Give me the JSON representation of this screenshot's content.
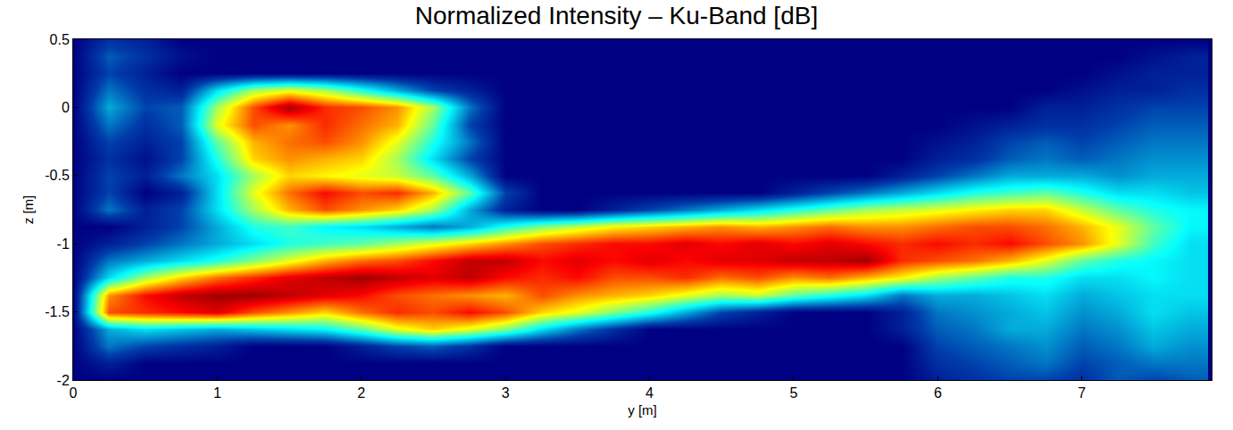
{
  "chart_data": {
    "type": "heatmap",
    "title": "Normalized Intensity – Ku-Band [dB]",
    "x_label": "y [m]",
    "y_label": "z [m]",
    "color": "Jet",
    "xlim": [
      0,
      7.9
    ],
    "ylim": [
      -2,
      0.5
    ],
    "xticks": [
      0,
      1,
      2,
      3,
      4,
      5,
      6,
      7
    ],
    "yticks": [
      -2,
      -1.5,
      -1,
      -0.5,
      0,
      0.5
    ],
    "zlim": [
      -30,
      0
    ],
    "x": [
      0,
      0.25,
      0.5,
      0.75,
      1,
      1.25,
      1.5,
      1.75,
      2,
      2.25,
      2.5,
      2.75,
      3,
      3.25,
      3.5,
      3.75,
      4,
      4.25,
      4.5,
      4.75,
      5,
      5.25,
      5.5,
      5.75,
      6,
      6.25,
      6.5,
      6.75,
      7,
      7.25,
      7.5,
      7.75
    ],
    "y": [
      -2,
      -1.875,
      -1.75,
      -1.625,
      -1.5,
      -1.375,
      -1.25,
      -1.125,
      -1,
      -0.875,
      -0.75,
      -0.625,
      -0.5,
      -0.375,
      -0.25,
      -0.125,
      0,
      0.125,
      0.25,
      0.375,
      0.5
    ],
    "z": [
      [
        -30,
        -30,
        -30,
        -30,
        -30,
        -30,
        -30,
        -30,
        -30,
        -30,
        -30,
        -30,
        -30,
        -30,
        -30,
        -30,
        -30,
        -30,
        -30,
        -30,
        -30,
        -30,
        -30,
        -30,
        -28,
        -27,
        -26,
        -26,
        -27,
        -25,
        -26,
        -25
      ],
      [
        -30,
        -28,
        -30,
        -30,
        -30,
        -30,
        -30,
        -30,
        -30,
        -30,
        -30,
        -30,
        -30,
        -30,
        -30,
        -30,
        -30,
        -30,
        -30,
        -30,
        -30,
        -30,
        -30,
        -30,
        -27,
        -26,
        -25,
        -24,
        -26,
        -25,
        -24,
        -24
      ],
      [
        -30,
        -24,
        -26,
        -27,
        -28,
        -30,
        -30,
        -30,
        -28,
        -26,
        -25,
        -27,
        -30,
        -30,
        -30,
        -30,
        -30,
        -30,
        -30,
        -30,
        -30,
        -30,
        -30,
        -30,
        -26,
        -25,
        -24,
        -23,
        -25,
        -24,
        -22,
        -23
      ],
      [
        -30,
        -22,
        -20,
        -21,
        -22,
        -21,
        -20,
        -19,
        -16,
        -12,
        -10,
        -12,
        -15,
        -20,
        -24,
        -27,
        -30,
        -30,
        -30,
        -30,
        -30,
        -30,
        -30,
        -28,
        -25,
        -24,
        -22,
        -22,
        -24,
        -23,
        -21,
        -22
      ],
      [
        -30,
        -6,
        -5,
        -4,
        -3,
        -6,
        -8,
        -10,
        -7,
        -5,
        -6,
        -4,
        -6,
        -10,
        -12,
        -15,
        -18,
        -22,
        -26,
        -28,
        -30,
        -30,
        -30,
        -28,
        -24,
        -23,
        -22,
        -21,
        -23,
        -22,
        -20,
        -21
      ],
      [
        -30,
        -8,
        -4,
        -2,
        -1,
        -1,
        -2,
        -3,
        -4,
        -6,
        -7,
        -8,
        -9,
        -6,
        -8,
        -9,
        -10,
        -12,
        -14,
        -13,
        -16,
        -18,
        -20,
        -24,
        -22,
        -22,
        -21,
        -20,
        -22,
        -21,
        -20,
        -20
      ],
      [
        -30,
        -20,
        -14,
        -10,
        -7,
        -5,
        -3,
        -2,
        -1,
        -2,
        -3,
        -2,
        -4,
        -5,
        -4,
        -6,
        -6,
        -5,
        -7,
        -6,
        -8,
        -7,
        -9,
        -11,
        -14,
        -16,
        -18,
        -18,
        -20,
        -20,
        -19,
        -20
      ],
      [
        -30,
        -24,
        -22,
        -20,
        -18,
        -15,
        -12,
        -9,
        -7,
        -6,
        -4,
        -2,
        -2,
        -4,
        -3,
        -4,
        -3,
        -4,
        -3,
        -3,
        -2,
        -2,
        -1,
        -5,
        -6,
        -7,
        -9,
        -12,
        -16,
        -18,
        -19,
        -20
      ],
      [
        -30,
        -28,
        -26,
        -24,
        -22,
        -20,
        -18,
        -17,
        -16,
        -14,
        -12,
        -10,
        -8,
        -6,
        -5,
        -4,
        -4,
        -3,
        -4,
        -3,
        -4,
        -3,
        -4,
        -5,
        -4,
        -5,
        -4,
        -6,
        -8,
        -12,
        -17,
        -20
      ],
      [
        -30,
        -30,
        -28,
        -26,
        -22,
        -18,
        -17,
        -19,
        -20,
        -22,
        -24,
        -22,
        -18,
        -15,
        -13,
        -11,
        -10,
        -9,
        -8,
        -9,
        -8,
        -7,
        -8,
        -8,
        -7,
        -6,
        -6,
        -7,
        -9,
        -12,
        -16,
        -19
      ],
      [
        -30,
        -24,
        -28,
        -26,
        -20,
        -14,
        -9,
        -6,
        -8,
        -10,
        -14,
        -22,
        -28,
        -30,
        -30,
        -28,
        -26,
        -24,
        -22,
        -20,
        -18,
        -16,
        -14,
        -13,
        -12,
        -11,
        -10,
        -10,
        -13,
        -16,
        -18,
        -19
      ],
      [
        -30,
        -26,
        -30,
        -28,
        -20,
        -12,
        -7,
        -4,
        -6,
        -5,
        -9,
        -16,
        -26,
        -30,
        -30,
        -30,
        -30,
        -30,
        -30,
        -30,
        -28,
        -26,
        -24,
        -22,
        -20,
        -18,
        -17,
        -16,
        -18,
        -20,
        -20,
        -21
      ],
      [
        -30,
        -26,
        -28,
        -24,
        -20,
        -14,
        -10,
        -11,
        -12,
        -13,
        -16,
        -22,
        -30,
        -30,
        -30,
        -30,
        -30,
        -30,
        -30,
        -30,
        -30,
        -30,
        -30,
        -28,
        -26,
        -24,
        -22,
        -22,
        -22,
        -23,
        -22,
        -22
      ],
      [
        -30,
        -27,
        -29,
        -26,
        -18,
        -10,
        -8,
        -9,
        -10,
        -14,
        -20,
        -26,
        -30,
        -30,
        -30,
        -30,
        -30,
        -30,
        -30,
        -30,
        -30,
        -30,
        -30,
        -30,
        -28,
        -27,
        -25,
        -24,
        -25,
        -24,
        -23,
        -23
      ],
      [
        -30,
        -26,
        -28,
        -26,
        -16,
        -9,
        -7,
        -6,
        -8,
        -12,
        -18,
        -24,
        -30,
        -30,
        -30,
        -30,
        -30,
        -30,
        -30,
        -30,
        -30,
        -30,
        -30,
        -30,
        -29,
        -28,
        -26,
        -25,
        -26,
        -25,
        -24,
        -24
      ],
      [
        -30,
        -24,
        -27,
        -25,
        -12,
        -6,
        -8,
        -5,
        -7,
        -9,
        -16,
        -26,
        -30,
        -30,
        -30,
        -30,
        -30,
        -30,
        -30,
        -30,
        -30,
        -30,
        -30,
        -30,
        -30,
        -29,
        -28,
        -27,
        -27,
        -26,
        -25,
        -25
      ],
      [
        -30,
        -22,
        -26,
        -25,
        -14,
        -6,
        -1,
        -5,
        -6,
        -8,
        -14,
        -24,
        -30,
        -30,
        -30,
        -30,
        -30,
        -30,
        -30,
        -30,
        -30,
        -30,
        -30,
        -30,
        -30,
        -30,
        -30,
        -28,
        -28,
        -27,
        -26,
        -26
      ],
      [
        -30,
        -24,
        -27,
        -28,
        -20,
        -14,
        -12,
        -14,
        -18,
        -22,
        -26,
        -28,
        -30,
        -30,
        -30,
        -30,
        -30,
        -30,
        -30,
        -30,
        -30,
        -30,
        -30,
        -30,
        -30,
        -30,
        -30,
        -30,
        -29,
        -28,
        -28,
        -27
      ],
      [
        -30,
        -26,
        -28,
        -30,
        -30,
        -30,
        -30,
        -30,
        -30,
        -30,
        -30,
        -30,
        -30,
        -30,
        -30,
        -30,
        -30,
        -30,
        -30,
        -30,
        -30,
        -30,
        -30,
        -30,
        -30,
        -30,
        -30,
        -30,
        -30,
        -29,
        -28,
        -28
      ],
      [
        -30,
        -25,
        -27,
        -29,
        -30,
        -30,
        -30,
        -30,
        -30,
        -30,
        -30,
        -30,
        -30,
        -30,
        -30,
        -30,
        -30,
        -30,
        -30,
        -30,
        -30,
        -30,
        -30,
        -30,
        -30,
        -30,
        -30,
        -30,
        -30,
        -30,
        -29,
        -28
      ],
      [
        -30,
        -27,
        -28,
        -30,
        -30,
        -30,
        -30,
        -30,
        -30,
        -30,
        -30,
        -30,
        -30,
        -30,
        -30,
        -30,
        -30,
        -30,
        -30,
        -30,
        -30,
        -30,
        -30,
        -30,
        -30,
        -30,
        -30,
        -30,
        -30,
        -30,
        -30,
        -30
      ]
    ]
  }
}
